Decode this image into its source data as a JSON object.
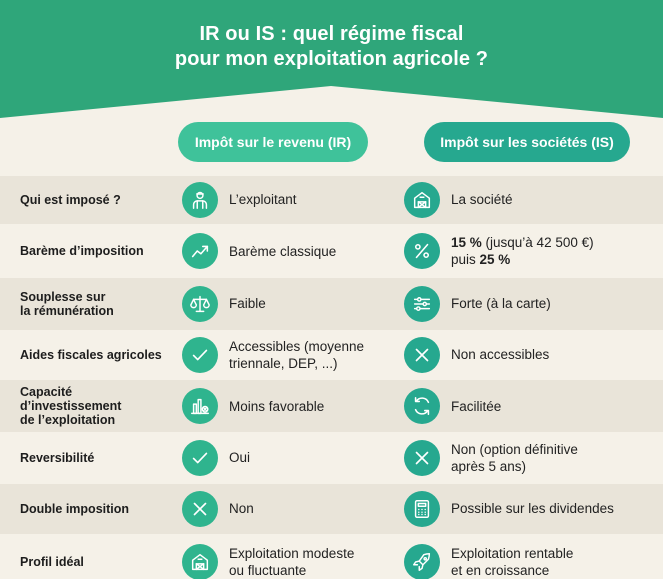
{
  "header": {
    "title_line1": "IR ou IS : quel régime fiscal",
    "title_line2": "pour mon exploitation agricole ?"
  },
  "columns": {
    "ir": "Impôt sur le revenu (IR)",
    "is": "Impôt sur les sociétés (IS)"
  },
  "colors": {
    "header_green": "#2fa67a",
    "ir_green": "#3fc29a",
    "is_teal": "#26a88f",
    "background": "#f5f1e8",
    "row_shade": "#e9e4d9"
  },
  "rows": [
    {
      "label": "Qui est imposé ?",
      "ir_icon": "farmer-icon",
      "ir_text": "L’exploitant",
      "is_icon": "barn-icon",
      "is_text": "La société"
    },
    {
      "label": "Barème d’imposition",
      "ir_icon": "trend-chart-icon",
      "ir_text": "Barème classique",
      "is_icon": "percent-icon",
      "is_rate_1": "15 %",
      "is_text_1": " (jusqu’à 42 500 €)",
      "is_text_2": "puis ",
      "is_rate_2": "25 %"
    },
    {
      "label_1": "Souplesse sur",
      "label_2": "la rémunération",
      "ir_icon": "scales-icon",
      "ir_text": "Faible",
      "is_icon": "sliders-icon",
      "is_text": "Forte (à la carte)"
    },
    {
      "label": "Aides fiscales agricoles",
      "ir_icon": "check-icon",
      "ir_text_1": "Accessibles (moyenne",
      "ir_text_2": "triennale, DEP, ...)",
      "is_icon": "cross-icon",
      "is_text": "Non accessibles"
    },
    {
      "label_1": "Capacité",
      "label_2": "d’investissement",
      "label_3": "de l’exploitation",
      "ir_icon": "bar-chart-cross-icon",
      "ir_text": "Moins favorable",
      "is_icon": "refresh-icon",
      "is_text": "Facilitée"
    },
    {
      "label": "Reversibilité",
      "ir_icon": "check-icon",
      "ir_text": "Oui",
      "is_icon": "cross-icon",
      "is_text_1": "Non (option définitive",
      "is_text_2": "après 5 ans)"
    },
    {
      "label": "Double imposition",
      "ir_icon": "cross-icon",
      "ir_text": "Non",
      "is_icon": "calculator-icon",
      "is_text": "Possible sur les dividendes"
    },
    {
      "label": "Profil idéal",
      "ir_icon": "barn-icon",
      "ir_text_1": "Exploitation modeste",
      "ir_text_2": "ou fluctuante",
      "is_icon": "rocket-icon",
      "is_text_1": "Exploitation rentable",
      "is_text_2": "et en croissance"
    }
  ]
}
